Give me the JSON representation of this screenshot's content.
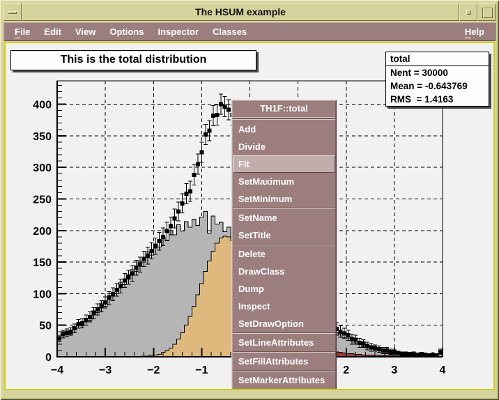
{
  "window": {
    "title": "The HSUM example"
  },
  "menu_bar": {
    "items": [
      {
        "label": "File",
        "underline": true
      },
      {
        "label": "Edit"
      },
      {
        "label": "View"
      },
      {
        "label": "Options"
      },
      {
        "label": "Inspector"
      },
      {
        "label": "Classes"
      },
      {
        "label": "Help",
        "underline": true,
        "align": "right"
      }
    ]
  },
  "plot": {
    "title": "This is the total distribution"
  },
  "stats_box": {
    "name": "total",
    "lines": [
      "Nent = 30000",
      "Mean = -0.643769",
      "RMS  = 1.4163"
    ]
  },
  "context_menu": {
    "title": "TH1F::total",
    "highlighted": "Fit",
    "groups": [
      [
        "Add",
        "Divide",
        "Fit",
        "SetMaximum",
        "SetMinimum"
      ],
      [
        "SetName",
        "SetTitle"
      ],
      [
        "Delete",
        "DrawClass",
        "Dump",
        "Inspect",
        "SetDrawOption"
      ],
      [
        "SetLineAttributes"
      ],
      [
        "SetFillAttributes"
      ],
      [
        "SetMarkerAttributes"
      ]
    ]
  },
  "colors": {
    "frame_khaki": "#d6d29c",
    "menubar_mauve": "#9c7e7e",
    "canvas_highlight_yellow": "#cfcf20",
    "histogram_gray": "#b5b5b5",
    "histogram_tan": "#dfb87e",
    "histogram_red": "#a03a35",
    "marker_black": "#000000"
  },
  "chart_data": {
    "type": "bar",
    "title": "This is the total distribution",
    "xlabel": "",
    "ylabel": "",
    "xlim": [
      -4,
      4
    ],
    "ylim": [
      0,
      437
    ],
    "bins": 100,
    "grid": "dashed",
    "xticks": [
      -4,
      -3,
      -2,
      -1,
      0,
      1,
      2,
      3,
      4
    ],
    "xtick_labels": [
      "−4",
      "−3",
      "−2",
      "−1",
      "0",
      "1",
      "2",
      "3",
      "4"
    ],
    "x_minor_step": 0.2,
    "yticks": [
      0,
      50,
      100,
      150,
      200,
      250,
      300,
      350,
      400
    ],
    "ytick_labels": [
      "0",
      "50",
      "100",
      "150",
      "200",
      "250",
      "300",
      "350",
      "400"
    ],
    "y_minor_step": 10,
    "series": [
      {
        "name": "main",
        "style": "fill",
        "color": "#b5b5b5",
        "values": [
          27,
          40,
          35,
          36,
          48,
          50,
          49,
          61,
          58,
          73,
          70,
          85,
          80,
          97,
          102,
          100,
          118,
          114,
          130,
          138,
          135,
          152,
          150,
          166,
          161,
          179,
          174,
          190,
          184,
          200,
          193,
          209,
          199,
          214,
          205,
          218,
          208,
          221,
          230,
          196,
          223,
          210,
          213,
          198,
          205,
          190,
          193,
          180,
          184,
          170,
          172,
          158,
          160,
          145,
          143,
          138,
          124,
          123,
          110,
          109,
          98,
          96,
          85,
          83,
          77,
          68,
          66,
          57,
          56,
          51,
          43,
          42,
          38,
          35,
          31,
          30,
          26,
          22,
          20,
          16,
          16,
          14,
          12,
          11,
          9,
          8,
          7,
          6,
          5,
          5,
          4,
          3,
          3,
          3,
          2,
          2,
          2,
          1,
          1,
          1
        ]
      },
      {
        "name": "s1",
        "style": "fill",
        "color": "#dfb87e",
        "values": [
          0,
          0,
          0,
          0,
          0,
          0,
          0,
          0,
          0,
          0,
          0,
          0,
          0,
          0,
          0,
          0,
          0,
          0,
          0,
          0,
          0,
          0,
          1,
          1,
          2,
          3,
          4,
          7,
          10,
          14,
          20,
          28,
          38,
          50,
          64,
          80,
          98,
          116,
          135,
          152,
          167,
          180,
          188,
          191,
          190,
          184,
          174,
          160,
          143,
          125,
          107,
          89,
          72,
          57,
          44,
          33,
          24,
          17,
          12,
          8,
          5,
          3,
          2,
          1,
          1,
          0,
          0,
          0,
          0,
          0,
          0,
          0,
          0,
          0,
          0,
          0,
          0,
          0,
          0,
          0,
          0,
          0,
          0,
          0,
          0,
          0,
          0,
          0,
          0,
          0,
          0,
          0,
          0,
          0,
          0,
          0,
          0,
          0,
          0,
          0
        ]
      },
      {
        "name": "s2",
        "style": "fill",
        "color": "#a03a35",
        "values": [
          0,
          0,
          0,
          0,
          0,
          0,
          0,
          0,
          0,
          0,
          0,
          0,
          0,
          0,
          0,
          0,
          0,
          0,
          0,
          0,
          0,
          0,
          0,
          0,
          0,
          0,
          0,
          0,
          0,
          0,
          0,
          0,
          0,
          0,
          0,
          0,
          0,
          0,
          0,
          0,
          0,
          0,
          0,
          0,
          0,
          0,
          0,
          0,
          0,
          0,
          0,
          0,
          0,
          0,
          0,
          0,
          0,
          1,
          3,
          12,
          48,
          110,
          142,
          118,
          86,
          60,
          43,
          31,
          23,
          17,
          13,
          10,
          8,
          7,
          6,
          5,
          5,
          4,
          4,
          3,
          3,
          3,
          2,
          2,
          2,
          2,
          2,
          1,
          1,
          1,
          1,
          1,
          1,
          1,
          1,
          1,
          1,
          1,
          1,
          1
        ]
      },
      {
        "name": "total",
        "style": "marker-error",
        "color": "#000000",
        "values": [
          29,
          36,
          38,
          40,
          45,
          52,
          53,
          58,
          63,
          69,
          75,
          80,
          86,
          93,
          99,
          106,
          112,
          121,
          126,
          132,
          141,
          146,
          155,
          160,
          168,
          175,
          183,
          190,
          199,
          207,
          219,
          230,
          243,
          258,
          262,
          288,
          305,
          324,
          352,
          358,
          382,
          383,
          400,
          396,
          391,
          383,
          368,
          349,
          326,
          301,
          277,
          253,
          229,
          207,
          187,
          168,
          153,
          140,
          130,
          128,
          154,
          208,
          233,
          201,
          163,
          131,
          108,
          91,
          78,
          67,
          58,
          51,
          44,
          40,
          37,
          34,
          28,
          27,
          22,
          21,
          17,
          15,
          14,
          12,
          10,
          10,
          8,
          7,
          6,
          5,
          5,
          4,
          5,
          3,
          4,
          3,
          2,
          3,
          2,
          8
        ],
        "errors": [
          5,
          6,
          6,
          6,
          7,
          7,
          7,
          8,
          8,
          9,
          9,
          9,
          9,
          10,
          10,
          10,
          11,
          11,
          11,
          12,
          12,
          12,
          12,
          13,
          13,
          13,
          14,
          14,
          14,
          14,
          15,
          15,
          15,
          16,
          16,
          16,
          16,
          16,
          16,
          16,
          16,
          16,
          16,
          16,
          16,
          16,
          16,
          15,
          15,
          15,
          14,
          14,
          14,
          13,
          13,
          13,
          12,
          12,
          12,
          14,
          20,
          28,
          32,
          29,
          25,
          21,
          19,
          16,
          14,
          13,
          11,
          10,
          10,
          9,
          8,
          8,
          8,
          7,
          7,
          6,
          6,
          6,
          5,
          5,
          5,
          5,
          4,
          4,
          3,
          3,
          3,
          3,
          3,
          3,
          3,
          3,
          3,
          3,
          3,
          4
        ]
      }
    ]
  }
}
